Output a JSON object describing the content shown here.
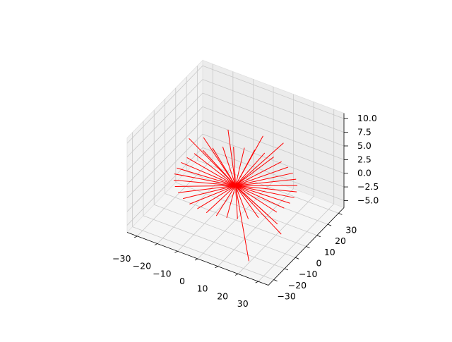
{
  "chart_data": {
    "type": "line",
    "projection": "3d",
    "title": "",
    "xlabel": "",
    "ylabel": "",
    "zlabel": "",
    "xlim": [
      -35,
      35
    ],
    "ylim": [
      -35,
      35
    ],
    "zlim": [
      -6.3,
      11
    ],
    "x_ticks": [
      "−30",
      "−20",
      "−10",
      "0",
      "10",
      "20",
      "30"
    ],
    "y_ticks": [
      "−30",
      "−20",
      "−10",
      "0",
      "10",
      "20",
      "30"
    ],
    "z_ticks": [
      "−5.0",
      "−2.5",
      "0.0",
      "2.5",
      "5.0",
      "7.5",
      "10.0"
    ],
    "x_tick_values": [
      -30,
      -20,
      -10,
      0,
      10,
      20,
      30
    ],
    "y_tick_values": [
      -30,
      -20,
      -10,
      0,
      10,
      20,
      30
    ],
    "z_tick_values": [
      -5,
      -2.5,
      0,
      2.5,
      5,
      7.5,
      10
    ],
    "grid": true,
    "line_color": "#ff0000",
    "line_start": [
      0,
      0,
      0
    ],
    "line_ends": [
      [
        27,
        0,
        0.5
      ],
      [
        26.6,
        4.7,
        0.5
      ],
      [
        25.4,
        9.2,
        0.5
      ],
      [
        23.4,
        13.5,
        0.5
      ],
      [
        20.7,
        17.4,
        0.5
      ],
      [
        17.4,
        20.7,
        0.5
      ],
      [
        13.5,
        23.4,
        0.5
      ],
      [
        9.2,
        25.4,
        0.5
      ],
      [
        4.7,
        26.6,
        0.5
      ],
      [
        0,
        27,
        0.5
      ],
      [
        -4.7,
        26.6,
        0.5
      ],
      [
        -9.2,
        25.4,
        0.5
      ],
      [
        -13.5,
        23.4,
        0.5
      ],
      [
        -17.4,
        20.7,
        0.5
      ],
      [
        -20.7,
        17.4,
        0.5
      ],
      [
        -23.4,
        13.5,
        0.5
      ],
      [
        -25.4,
        9.2,
        0.5
      ],
      [
        -26.6,
        4.7,
        0.5
      ],
      [
        -27,
        0,
        0.5
      ],
      [
        -26.6,
        -4.7,
        0.5
      ],
      [
        -25.4,
        -9.2,
        0.5
      ],
      [
        -23.4,
        -13.5,
        0.5
      ],
      [
        -20.7,
        -17.4,
        0.5
      ],
      [
        -17.4,
        -20.7,
        0.5
      ],
      [
        -13.5,
        -23.4,
        0.5
      ],
      [
        -9.2,
        -25.4,
        0.5
      ],
      [
        -4.7,
        -26.6,
        0.5
      ],
      [
        0,
        -27,
        0.5
      ],
      [
        4.7,
        -26.6,
        0.5
      ],
      [
        9.2,
        -25.4,
        0.5
      ],
      [
        13.5,
        -23.4,
        0.5
      ],
      [
        17.4,
        -20.7,
        0.5
      ],
      [
        20.7,
        -17.4,
        0.5
      ],
      [
        23.4,
        -13.5,
        0.5
      ],
      [
        25.4,
        -9.2,
        0.5
      ],
      [
        26.6,
        -4.7,
        0.5
      ],
      [
        -22,
        -2,
        6
      ],
      [
        -18,
        4,
        5.5
      ],
      [
        -8,
        8,
        7.5
      ],
      [
        4,
        18,
        6
      ],
      [
        12,
        22,
        5
      ],
      [
        28,
        -10,
        -3
      ],
      [
        20,
        -25,
        -6
      ],
      [
        24,
        -6,
        -2.5
      ]
    ]
  }
}
